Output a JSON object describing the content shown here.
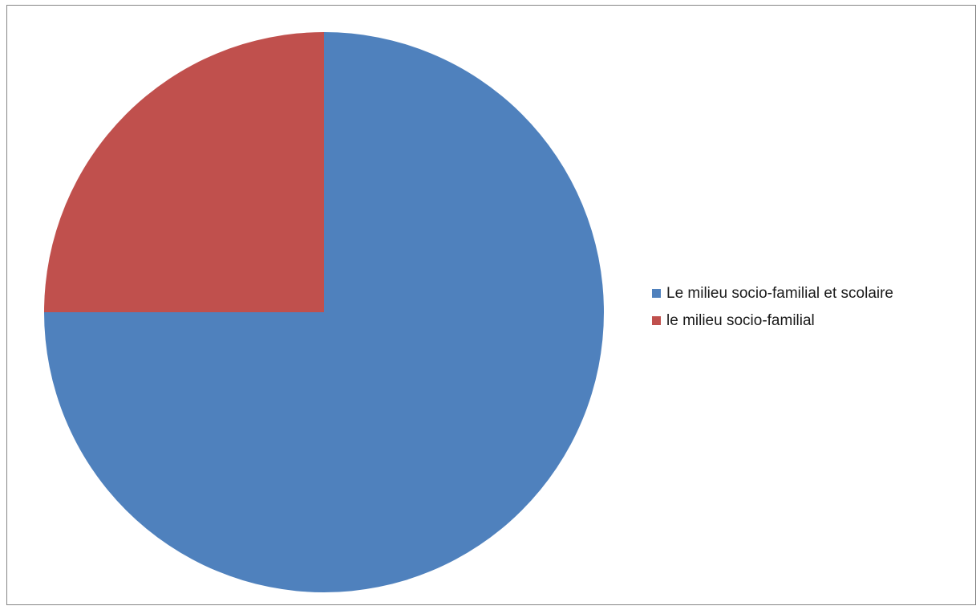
{
  "chart_data": {
    "type": "pie",
    "title": "",
    "start_angle_deg": 0,
    "direction": "clockwise",
    "legend_position": "right",
    "series": [
      {
        "categories": [
          "Le milieu socio-familial et scolaire",
          "le milieu socio-familial"
        ],
        "values": [
          75,
          25
        ],
        "colors": [
          "#4f81bd",
          "#c0504d"
        ]
      }
    ]
  }
}
